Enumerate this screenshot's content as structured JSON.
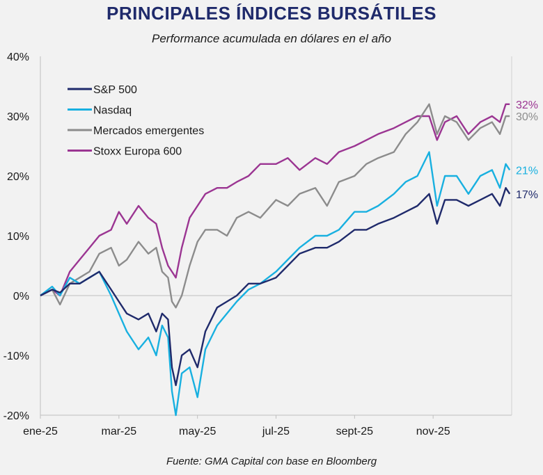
{
  "header": {
    "title": "PRINCIPALES ÍNDICES BURSÁTILES",
    "subtitle": "Performance acumulada en dólares en el año"
  },
  "footer": {
    "source": "Fuente: GMA Capital con base en Bloomberg"
  },
  "chart_data": {
    "type": "line",
    "yunit": "%",
    "ylim": [
      -20,
      40
    ],
    "yticks": [
      40,
      30,
      20,
      10,
      0,
      -10,
      -20
    ],
    "ytick_labels": [
      "40%",
      "30%",
      "20%",
      "10%",
      "0%",
      "-10%",
      "-20%"
    ],
    "xticks": [
      "ene-25",
      "mar-25",
      "may-25",
      "jul-25",
      "sept-25",
      "nov-25"
    ],
    "xtick_positions": [
      0,
      2,
      4,
      6,
      8,
      10
    ],
    "xlim": [
      0,
      12
    ],
    "legend_position": "top-left",
    "series": [
      {
        "name": "S&P 500",
        "color": "#1f2a6b",
        "end_label": "17%",
        "x": [
          0,
          0.3,
          0.5,
          0.75,
          1.0,
          1.25,
          1.5,
          1.8,
          2.0,
          2.2,
          2.5,
          2.75,
          2.95,
          3.1,
          3.25,
          3.35,
          3.45,
          3.6,
          3.8,
          4.0,
          4.2,
          4.5,
          4.75,
          5.0,
          5.3,
          5.6,
          6.0,
          6.3,
          6.6,
          7.0,
          7.3,
          7.6,
          8.0,
          8.3,
          8.6,
          9.0,
          9.3,
          9.6,
          9.9,
          10.1,
          10.3,
          10.6,
          10.9,
          11.2,
          11.5,
          11.7,
          11.85,
          11.95
        ],
        "values": [
          0,
          1,
          0.5,
          2,
          2,
          3,
          4,
          1,
          -1,
          -3,
          -4,
          -3,
          -6,
          -3,
          -4,
          -12,
          -15,
          -10,
          -9,
          -12,
          -6,
          -2,
          -1,
          0,
          2,
          2,
          3,
          5,
          7,
          8,
          8,
          9,
          11,
          11,
          12,
          13,
          14,
          15,
          17,
          12,
          16,
          16,
          15,
          16,
          17,
          15,
          18,
          17
        ]
      },
      {
        "name": "Nasdaq",
        "color": "#18b0e0",
        "end_label": "21%",
        "x": [
          0,
          0.3,
          0.5,
          0.75,
          1.0,
          1.25,
          1.5,
          1.8,
          2.0,
          2.2,
          2.5,
          2.75,
          2.95,
          3.1,
          3.25,
          3.35,
          3.45,
          3.6,
          3.8,
          4.0,
          4.2,
          4.5,
          4.75,
          5.0,
          5.3,
          5.6,
          6.0,
          6.3,
          6.6,
          7.0,
          7.3,
          7.6,
          8.0,
          8.3,
          8.6,
          9.0,
          9.3,
          9.6,
          9.9,
          10.1,
          10.3,
          10.6,
          10.9,
          11.2,
          11.5,
          11.7,
          11.85,
          11.95
        ],
        "values": [
          0,
          1.5,
          0,
          3,
          2,
          3,
          4,
          0,
          -3,
          -6,
          -9,
          -7,
          -10,
          -5,
          -7,
          -16,
          -20,
          -13,
          -12,
          -17,
          -9,
          -5,
          -3,
          -1,
          1,
          2,
          4,
          6,
          8,
          10,
          10,
          11,
          14,
          14,
          15,
          17,
          19,
          20,
          24,
          15,
          20,
          20,
          17,
          20,
          21,
          18,
          22,
          21
        ]
      },
      {
        "name": "Mercados emergentes",
        "color": "#8c8c8c",
        "end_label": "30%",
        "x": [
          0,
          0.3,
          0.5,
          0.75,
          1.0,
          1.25,
          1.5,
          1.8,
          2.0,
          2.2,
          2.5,
          2.75,
          2.95,
          3.1,
          3.25,
          3.35,
          3.45,
          3.6,
          3.8,
          4.0,
          4.2,
          4.5,
          4.75,
          5.0,
          5.3,
          5.6,
          6.0,
          6.3,
          6.6,
          7.0,
          7.3,
          7.6,
          8.0,
          8.3,
          8.6,
          9.0,
          9.3,
          9.6,
          9.9,
          10.1,
          10.3,
          10.6,
          10.9,
          11.2,
          11.5,
          11.7,
          11.85,
          11.95
        ],
        "values": [
          0,
          1,
          -1.5,
          2,
          3,
          4,
          7,
          8,
          5,
          6,
          9,
          7,
          8,
          4,
          3,
          -1,
          -2,
          0,
          5,
          9,
          11,
          11,
          10,
          13,
          14,
          13,
          16,
          15,
          17,
          18,
          15,
          19,
          20,
          22,
          23,
          24,
          27,
          29,
          32,
          27,
          30,
          29,
          26,
          28,
          29,
          27,
          30,
          30
        ]
      },
      {
        "name": "Stoxx Europa 600",
        "color": "#9b3592",
        "end_label": "32%",
        "x": [
          0,
          0.3,
          0.5,
          0.75,
          1.0,
          1.25,
          1.5,
          1.8,
          2.0,
          2.2,
          2.5,
          2.75,
          2.95,
          3.1,
          3.25,
          3.35,
          3.45,
          3.6,
          3.8,
          4.0,
          4.2,
          4.5,
          4.75,
          5.0,
          5.3,
          5.6,
          6.0,
          6.3,
          6.6,
          7.0,
          7.3,
          7.6,
          8.0,
          8.3,
          8.6,
          9.0,
          9.3,
          9.6,
          9.9,
          10.1,
          10.3,
          10.6,
          10.9,
          11.2,
          11.5,
          11.7,
          11.85,
          11.95
        ],
        "values": [
          0,
          1,
          0,
          4,
          6,
          8,
          10,
          11,
          14,
          12,
          15,
          13,
          12,
          8,
          5,
          4,
          3,
          8,
          13,
          15,
          17,
          18,
          18,
          19,
          20,
          22,
          22,
          23,
          21,
          23,
          22,
          24,
          25,
          26,
          27,
          28,
          29,
          30,
          30,
          26,
          29,
          30,
          27,
          29,
          30,
          29,
          32,
          32
        ]
      }
    ]
  }
}
